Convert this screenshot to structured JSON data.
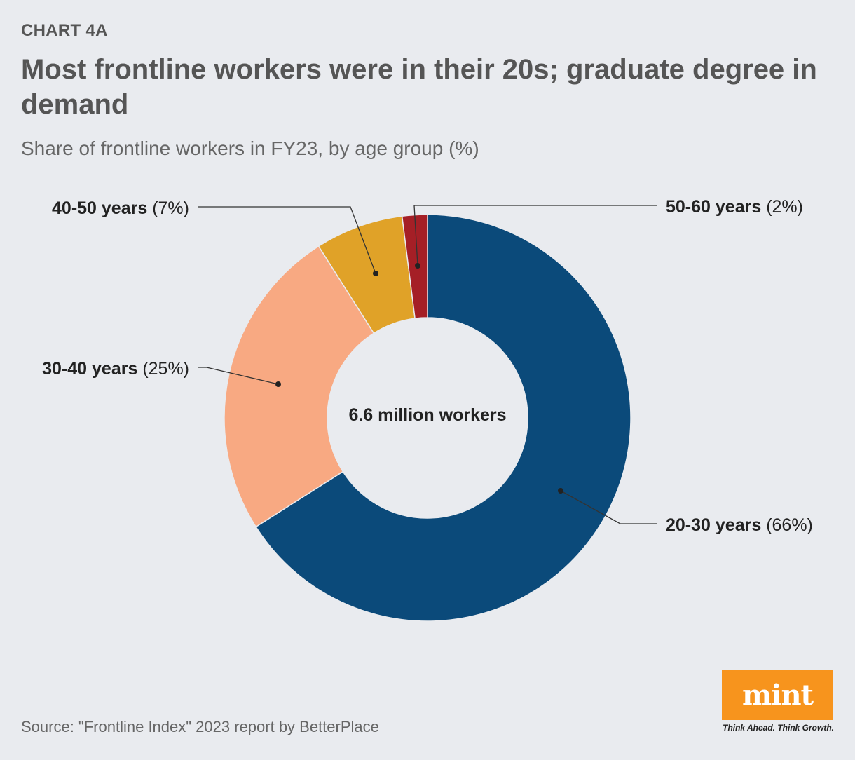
{
  "kicker": "CHART 4A",
  "title": "Most frontline workers were in their 20s; graduate degree in demand",
  "subtitle": "Share of frontline workers in FY23, by age group (%)",
  "source": "Source: \"Frontline Index\" 2023 report by BetterPlace",
  "logo": {
    "word": "mint",
    "tagline": "Think Ahead. Think Growth."
  },
  "chart_data": {
    "type": "pie",
    "donut": true,
    "center_label": "6.6 million workers",
    "categories": [
      "20-30 years",
      "30-40 years",
      "40-50 years",
      "50-60 years"
    ],
    "values": [
      66,
      25,
      7,
      2
    ],
    "value_labels": [
      "(66%)",
      "(25%)",
      "(7%)",
      "(2%)"
    ],
    "colors": [
      "#0b4a7a",
      "#f8a982",
      "#e0a228",
      "#a51f26"
    ],
    "start": "12 o'clock",
    "direction": "clockwise"
  }
}
